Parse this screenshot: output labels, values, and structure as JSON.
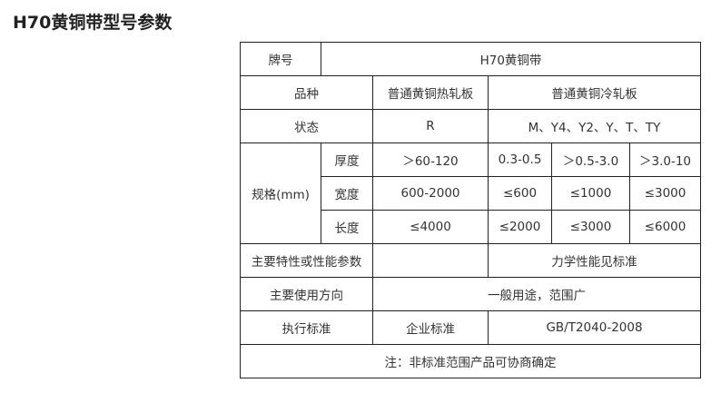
{
  "title": "H70黄铜带型号参数",
  "table": {
    "brand_label": "牌号",
    "brand_value": "H70黄铜带",
    "variety_label": "品种",
    "variety_hot": "普通黄铜热轧板",
    "variety_cold": "普通黄铜冷轧板",
    "state_label": "状态",
    "state_hot": "R",
    "state_cold": "M、Y4、Y2、Y、T、TY",
    "spec_label": "规格(mm)",
    "spec_rows": [
      {
        "label": "厚度",
        "values": [
          "＞60-120",
          "0.3-0.5",
          "＞0.5-3.0",
          "＞3.0-10"
        ]
      },
      {
        "label": "宽度",
        "values": [
          "600-2000",
          "≤600",
          "≤1000",
          "≤3000"
        ]
      },
      {
        "label": "长度",
        "values": [
          "≤4000",
          "≤2000",
          "≤3000",
          "≤6000"
        ]
      }
    ],
    "property_label": "主要特性或性能参数",
    "property_hot": "",
    "property_cold": "力学性能见标准",
    "usage_label": "主要使用方向",
    "usage_value": "一般用途，范围广",
    "standard_label": "执行标准",
    "standard_hot": "企业标准",
    "standard_cold": "GB/T2040-2008",
    "note": "注：非标准范围产品可协商确定"
  }
}
